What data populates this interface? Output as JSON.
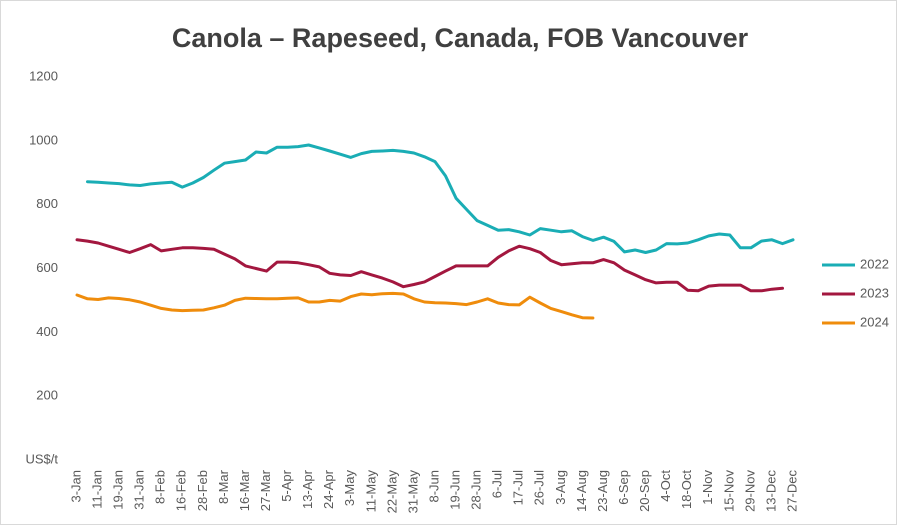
{
  "chart_data": {
    "type": "line",
    "title": "Canola – Rapeseed, Canada, FOB Vancouver",
    "y_label": "US$/t",
    "categories": [
      "3-Jan",
      null,
      "11-Jan",
      null,
      "19-Jan",
      null,
      "31-Jan",
      null,
      "8-Feb",
      null,
      "16-Feb",
      null,
      "28-Feb",
      null,
      "8-Mar",
      null,
      "16-Mar",
      null,
      "27-Mar",
      null,
      "5-Apr",
      null,
      "13-Apr",
      null,
      "24-Apr",
      null,
      "3-May",
      null,
      "11-May",
      null,
      "22-May",
      null,
      "31-May",
      null,
      "8-Jun",
      null,
      "19-Jun",
      null,
      "28-Jun",
      null,
      "6-Jul",
      null,
      "17-Jul",
      null,
      "26-Jul",
      null,
      "3-Aug",
      null,
      "14-Aug",
      null,
      "23-Aug",
      null,
      "6-Sep",
      null,
      "20-Sep",
      null,
      "4-Oct",
      null,
      "18-Oct",
      null,
      "1-Nov",
      null,
      "15-Nov",
      null,
      "29-Nov",
      null,
      "13-Dec",
      null,
      "27-Dec"
    ],
    "series": [
      {
        "name": "2022",
        "color": "#1aadb5",
        "values": [
          null,
          872,
          870,
          868,
          866,
          862,
          860,
          865,
          868,
          870,
          855,
          868,
          885,
          908,
          930,
          935,
          940,
          965,
          962,
          980,
          980,
          982,
          987,
          978,
          968,
          958,
          948,
          960,
          967,
          968,
          970,
          967,
          962,
          950,
          935,
          890,
          820,
          785,
          750,
          735,
          720,
          722,
          715,
          705,
          725,
          720,
          715,
          718,
          700,
          688,
          698,
          685,
          652,
          658,
          650,
          658,
          678,
          677,
          680,
          690,
          702,
          708,
          705,
          665,
          665,
          686,
          690,
          678,
          690
        ]
      },
      {
        "name": "2023",
        "color": "#a3173f",
        "values": [
          690,
          686,
          680,
          670,
          660,
          650,
          662,
          675,
          655,
          660,
          665,
          665,
          663,
          660,
          645,
          630,
          608,
          600,
          592,
          620,
          620,
          618,
          612,
          605,
          585,
          580,
          578,
          590,
          580,
          570,
          558,
          543,
          550,
          558,
          575,
          592,
          608,
          608,
          608,
          608,
          635,
          655,
          670,
          662,
          650,
          625,
          612,
          615,
          618,
          618,
          628,
          618,
          595,
          580,
          565,
          555,
          557,
          557,
          532,
          530,
          545,
          548,
          548,
          548,
          530,
          530,
          535,
          538,
          null
        ]
      },
      {
        "name": "2024",
        "color": "#ef8c0c",
        "values": [
          517,
          505,
          503,
          508,
          506,
          502,
          495,
          485,
          475,
          470,
          468,
          469,
          470,
          477,
          485,
          500,
          507,
          506,
          505,
          505,
          507,
          508,
          495,
          495,
          500,
          498,
          512,
          520,
          518,
          521,
          522,
          520,
          505,
          495,
          493,
          492,
          490,
          487,
          495,
          505,
          492,
          487,
          486,
          510,
          492,
          475,
          465,
          455,
          446,
          445,
          null,
          null,
          null,
          null,
          null,
          null,
          null,
          null,
          null,
          null,
          null,
          null,
          null,
          null,
          null,
          null,
          null,
          null,
          null
        ]
      }
    ],
    "ylim": [
      0,
      1200
    ],
    "yticks": [
      200,
      400,
      600,
      800,
      1000,
      1200
    ],
    "grid": false,
    "legend": "right"
  }
}
